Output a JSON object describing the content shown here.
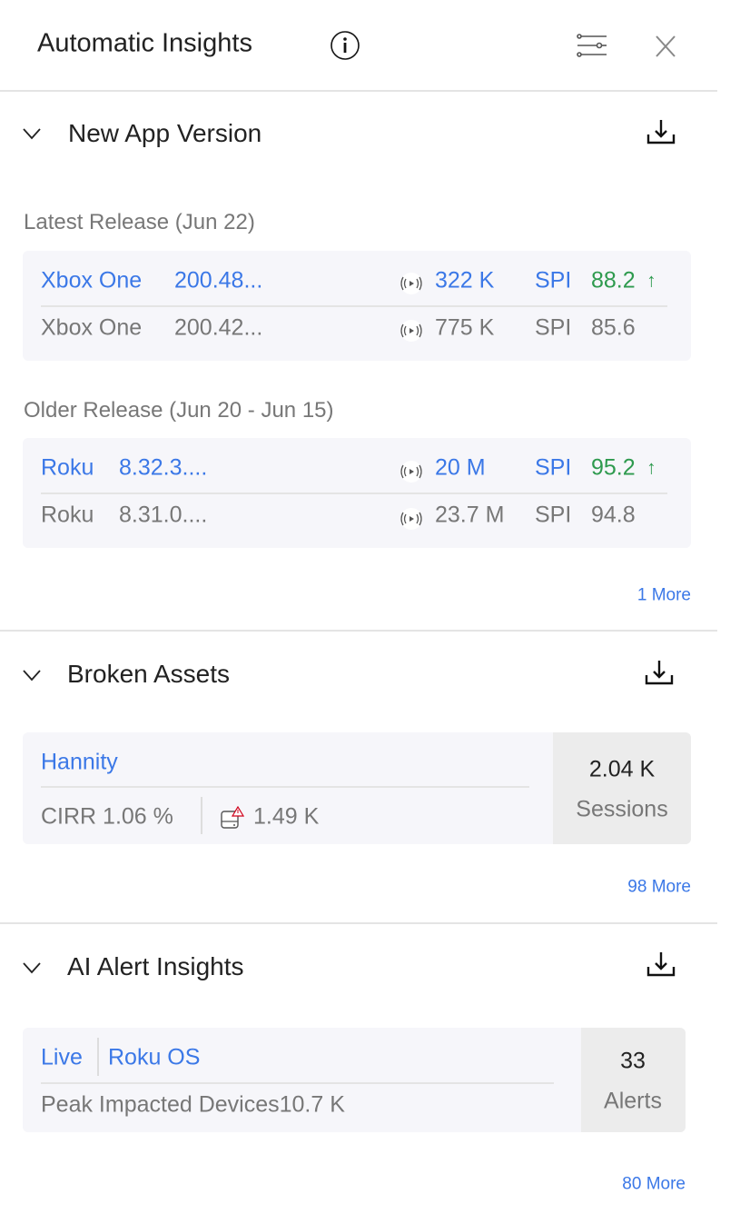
{
  "header": {
    "title": "Automatic Insights",
    "icons": [
      "info-icon",
      "filter-settings-icon",
      "close-icon"
    ]
  },
  "sections": [
    {
      "title": "New App Version",
      "groups": [
        {
          "label": "Latest Release (Jun 22)",
          "rows": [
            {
              "platform": "Xbox One",
              "version": "200.48...",
              "count": "322 K",
              "metric": "SPI",
              "value": "88.2",
              "trend": "↑"
            },
            {
              "platform": "Xbox One",
              "version": "200.42...",
              "count": "775 K",
              "metric": "SPI",
              "value": "85.6"
            }
          ]
        },
        {
          "label": "Older Release (Jun 20 - Jun 15)",
          "rows": [
            {
              "platform": "Roku",
              "version": "8.32.3....",
              "count": "20 M",
              "metric": "SPI",
              "value": "95.2",
              "trend": "↑"
            },
            {
              "platform": "Roku",
              "version": "8.31.0....",
              "count": "23.7 M",
              "metric": "SPI",
              "value": "94.8"
            }
          ]
        }
      ],
      "more": "1 More"
    },
    {
      "title": "Broken Assets",
      "item": {
        "name": "Hannity",
        "cirr": "CIRR 1.06 %",
        "broken": "1.49 K",
        "sessions_value": "2.04 K",
        "sessions_label": "Sessions"
      },
      "more": "98 More"
    },
    {
      "title": "AI Alert Insights",
      "item": {
        "tag": "Live",
        "platform": "Roku OS",
        "peak": "Peak Impacted Devices10.7 K",
        "alerts_value": "33",
        "alerts_label": "Alerts"
      },
      "more": "80 More"
    }
  ],
  "colors": {
    "link": "#3b78e7",
    "positive": "#2e9a4e",
    "muted": "#777777",
    "card_bg": "#f6f6fa"
  }
}
